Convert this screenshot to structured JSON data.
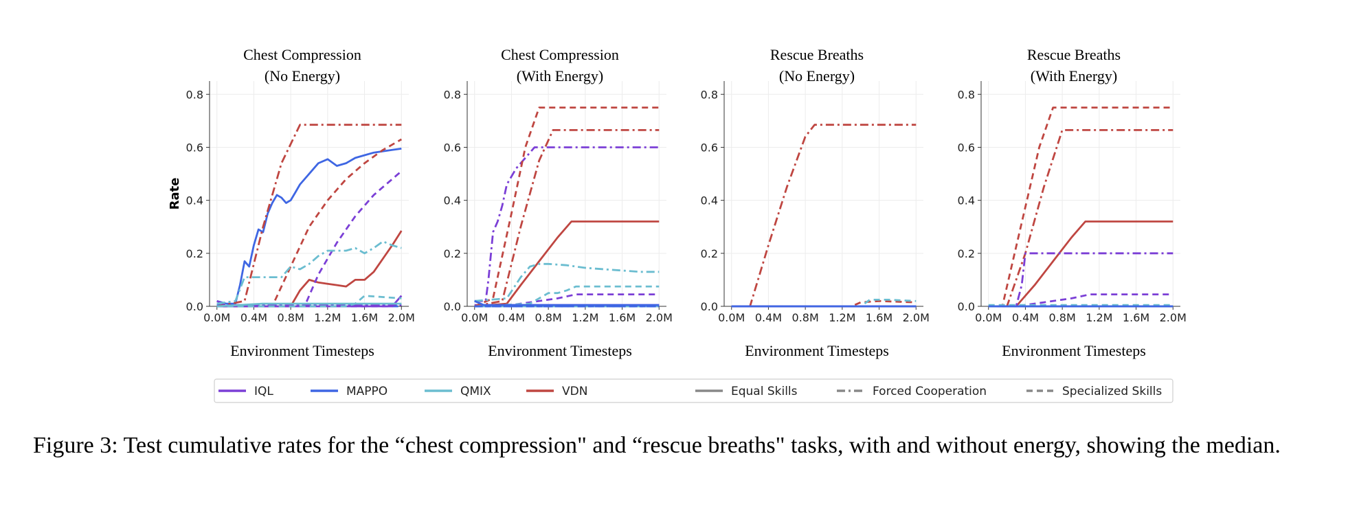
{
  "caption": "Figure 3: Test cumulative rates for the “chest compression\" and “rescue breaths\" tasks, with and without energy, showing the median.",
  "legend": {
    "algorithms": [
      {
        "name": "IQL",
        "color": "#7b3fd6"
      },
      {
        "name": "MAPPO",
        "color": "#3e66e3"
      },
      {
        "name": "QMIX",
        "color": "#6bbdd0"
      },
      {
        "name": "VDN",
        "color": "#bf4641"
      }
    ],
    "styles": [
      {
        "name": "Equal Skills",
        "dash": "solid"
      },
      {
        "name": "Forced Cooperation",
        "dash": "dashdot"
      },
      {
        "name": "Specialized Skills",
        "dash": "dashed"
      }
    ],
    "style_color": "#888888"
  },
  "chart_data": [
    {
      "type": "line",
      "title": "Chest Compression\n(No Energy)",
      "xlabel": "Environment Timesteps",
      "ylabel": "Rate",
      "xlim": [
        -0.08,
        2.08
      ],
      "ylim": [
        0,
        0.85
      ],
      "xticks": [
        0,
        0.4,
        0.8,
        1.2,
        1.6,
        2.0
      ],
      "xticklabels": [
        "0.0M",
        "0.4M",
        "0.8M",
        "1.2M",
        "1.6M",
        "2.0M"
      ],
      "yticks": [
        0,
        0.2,
        0.4,
        0.6,
        0.8
      ],
      "yticklabels": [
        "0.0",
        "0.2",
        "0.4",
        "0.6",
        "0.8"
      ],
      "grid": true,
      "series": [
        {
          "algo": "MAPPO",
          "skill": "Equal Skills",
          "x": [
            0,
            0.1,
            0.2,
            0.25,
            0.3,
            0.35,
            0.4,
            0.45,
            0.5,
            0.55,
            0.6,
            0.65,
            0.7,
            0.75,
            0.8,
            0.85,
            0.9,
            1.0,
            1.1,
            1.2,
            1.3,
            1.4,
            1.5,
            1.6,
            1.7,
            1.8,
            1.9,
            2.0
          ],
          "y": [
            0.02,
            0.01,
            0.01,
            0.08,
            0.17,
            0.15,
            0.23,
            0.29,
            0.28,
            0.35,
            0.39,
            0.42,
            0.41,
            0.39,
            0.4,
            0.43,
            0.46,
            0.5,
            0.54,
            0.555,
            0.53,
            0.54,
            0.56,
            0.57,
            0.58,
            0.585,
            0.59,
            0.595
          ]
        },
        {
          "algo": "MAPPO",
          "skill": "Forced Cooperation",
          "x": [
            0,
            2.0
          ],
          "y": [
            0.005,
            0.005
          ]
        },
        {
          "algo": "MAPPO",
          "skill": "Specialized Skills",
          "x": [
            0,
            0.2,
            2.0
          ],
          "y": [
            0.005,
            0.0,
            0.0
          ]
        },
        {
          "algo": "VDN",
          "skill": "Forced Cooperation",
          "x": [
            0,
            0.3,
            0.5,
            0.7,
            0.9,
            1.0,
            1.2,
            1.6,
            2.0
          ],
          "y": [
            0,
            0.02,
            0.3,
            0.54,
            0.685,
            0.685,
            0.685,
            0.685,
            0.685
          ]
        },
        {
          "algo": "VDN",
          "skill": "Specialized Skills",
          "x": [
            0,
            0.6,
            0.8,
            1.0,
            1.2,
            1.4,
            1.6,
            1.8,
            2.0
          ],
          "y": [
            0,
            0,
            0.15,
            0.3,
            0.4,
            0.48,
            0.54,
            0.59,
            0.63
          ]
        },
        {
          "algo": "VDN",
          "skill": "Equal Skills",
          "x": [
            0,
            0.8,
            0.9,
            1.0,
            1.1,
            1.2,
            1.3,
            1.4,
            1.5,
            1.6,
            1.7,
            1.8,
            1.9,
            2.0
          ],
          "y": [
            0,
            0,
            0.06,
            0.1,
            0.09,
            0.085,
            0.08,
            0.075,
            0.1,
            0.1,
            0.13,
            0.18,
            0.23,
            0.285
          ]
        },
        {
          "algo": "IQL",
          "skill": "Specialized Skills",
          "x": [
            0,
            0.95,
            1.1,
            1.3,
            1.5,
            1.7,
            1.9,
            2.0
          ],
          "y": [
            0,
            0,
            0.12,
            0.24,
            0.34,
            0.42,
            0.48,
            0.51
          ]
        },
        {
          "algo": "IQL",
          "skill": "Equal Skills",
          "x": [
            0,
            1.9,
            2.0
          ],
          "y": [
            0,
            0,
            0.04
          ]
        },
        {
          "algo": "IQL",
          "skill": "Forced Cooperation",
          "x": [
            0,
            0.1,
            2.0
          ],
          "y": [
            0.02,
            0.005,
            0.005
          ]
        },
        {
          "algo": "QMIX",
          "skill": "Forced Cooperation",
          "x": [
            0,
            0.2,
            0.3,
            0.5,
            0.7,
            0.8,
            0.9,
            1.0,
            1.1,
            1.2,
            1.4,
            1.5,
            1.6,
            1.7,
            1.8,
            1.9,
            2.0
          ],
          "y": [
            0.01,
            0.02,
            0.11,
            0.11,
            0.11,
            0.15,
            0.14,
            0.16,
            0.19,
            0.21,
            0.21,
            0.22,
            0.2,
            0.22,
            0.245,
            0.23,
            0.22
          ]
        },
        {
          "algo": "QMIX",
          "skill": "Specialized Skills",
          "x": [
            0,
            1.4,
            1.5,
            1.6,
            1.8,
            2.0
          ],
          "y": [
            0,
            0,
            0.01,
            0.04,
            0.035,
            0.03
          ]
        },
        {
          "algo": "QMIX",
          "skill": "Equal Skills",
          "x": [
            0,
            0.5,
            0.7,
            2.0
          ],
          "y": [
            0,
            0.01,
            0.01,
            0.01
          ]
        }
      ]
    },
    {
      "type": "line",
      "title": "Chest Compression\n(With Energy)",
      "xlabel": "Environment Timesteps",
      "ylabel": "",
      "xlim": [
        -0.08,
        2.08
      ],
      "ylim": [
        0,
        0.85
      ],
      "xticks": [
        0,
        0.4,
        0.8,
        1.2,
        1.6,
        2.0
      ],
      "xticklabels": [
        "0.0M",
        "0.4M",
        "0.8M",
        "1.2M",
        "1.6M",
        "2.0M"
      ],
      "yticks": [
        0,
        0.2,
        0.4,
        0.6,
        0.8
      ],
      "yticklabels": [
        "0.0",
        "0.2",
        "0.4",
        "0.6",
        "0.8"
      ],
      "grid": true,
      "series": [
        {
          "algo": "IQL",
          "skill": "Forced Cooperation",
          "x": [
            0,
            0.12,
            0.15,
            0.2,
            0.25,
            0.3,
            0.35,
            0.45,
            0.55,
            0.65,
            0.8,
            1.0,
            1.5,
            2.0
          ],
          "y": [
            0.02,
            0.02,
            0.1,
            0.28,
            0.32,
            0.38,
            0.46,
            0.52,
            0.56,
            0.6,
            0.6,
            0.6,
            0.6,
            0.6
          ]
        },
        {
          "algo": "IQL",
          "skill": "Specialized Skills",
          "x": [
            0,
            0.3,
            0.6,
            0.9,
            1.1,
            1.4,
            2.0
          ],
          "y": [
            0,
            0,
            0.015,
            0.03,
            0.045,
            0.045,
            0.045
          ]
        },
        {
          "algo": "IQL",
          "skill": "Equal Skills",
          "x": [
            0,
            2.0
          ],
          "y": [
            0.005,
            0.005
          ]
        },
        {
          "algo": "VDN",
          "skill": "Specialized Skills",
          "x": [
            0,
            0.2,
            0.4,
            0.55,
            0.7,
            0.75,
            1.0,
            1.5,
            2.0
          ],
          "y": [
            0,
            0.03,
            0.35,
            0.6,
            0.75,
            0.75,
            0.75,
            0.75,
            0.75
          ]
        },
        {
          "algo": "VDN",
          "skill": "Forced Cooperation",
          "x": [
            0,
            0.3,
            0.5,
            0.7,
            0.85,
            0.9,
            1.2,
            1.6,
            2.0
          ],
          "y": [
            0,
            0.02,
            0.3,
            0.55,
            0.665,
            0.665,
            0.665,
            0.665,
            0.665
          ]
        },
        {
          "algo": "VDN",
          "skill": "Equal Skills",
          "x": [
            0,
            0.35,
            0.5,
            0.7,
            0.9,
            1.05,
            1.2,
            1.6,
            2.0
          ],
          "y": [
            0,
            0.01,
            0.08,
            0.17,
            0.26,
            0.32,
            0.32,
            0.32,
            0.32
          ]
        },
        {
          "algo": "QMIX",
          "skill": "Forced Cooperation",
          "x": [
            0,
            0.35,
            0.5,
            0.6,
            0.7,
            0.8,
            1.0,
            1.2,
            1.4,
            1.6,
            1.8,
            2.0
          ],
          "y": [
            0.02,
            0.03,
            0.11,
            0.15,
            0.16,
            0.16,
            0.155,
            0.145,
            0.14,
            0.135,
            0.13,
            0.13
          ]
        },
        {
          "algo": "QMIX",
          "skill": "Specialized Skills",
          "x": [
            0,
            0.6,
            0.8,
            0.9,
            1.0,
            1.1,
            1.3,
            1.6,
            2.0
          ],
          "y": [
            0,
            0.01,
            0.05,
            0.05,
            0.06,
            0.075,
            0.075,
            0.075,
            0.075
          ]
        },
        {
          "algo": "QMIX",
          "skill": "Equal Skills",
          "x": [
            0,
            2.0
          ],
          "y": [
            0.0,
            0.0
          ]
        },
        {
          "algo": "MAPPO",
          "skill": "Equal Skills",
          "x": [
            0,
            0.1,
            2.0
          ],
          "y": [
            0.02,
            0.005,
            0.005
          ]
        },
        {
          "algo": "MAPPO",
          "skill": "Forced Cooperation",
          "x": [
            0,
            2.0
          ],
          "y": [
            0.0,
            0.0
          ]
        },
        {
          "algo": "MAPPO",
          "skill": "Specialized Skills",
          "x": [
            0,
            2.0
          ],
          "y": [
            0.0,
            0.0
          ]
        }
      ]
    },
    {
      "type": "line",
      "title": "Rescue Breaths\n(No Energy)",
      "xlabel": "Environment Timesteps",
      "ylabel": "",
      "xlim": [
        -0.08,
        2.08
      ],
      "ylim": [
        0,
        0.85
      ],
      "xticks": [
        0,
        0.4,
        0.8,
        1.2,
        1.6,
        2.0
      ],
      "xticklabels": [
        "0.0M",
        "0.4M",
        "0.8M",
        "1.2M",
        "1.6M",
        "2.0M"
      ],
      "yticks": [
        0,
        0.2,
        0.4,
        0.6,
        0.8
      ],
      "yticklabels": [
        "0.0",
        "0.2",
        "0.4",
        "0.6",
        "0.8"
      ],
      "grid": true,
      "series": [
        {
          "algo": "VDN",
          "skill": "Forced Cooperation",
          "x": [
            0,
            0.2,
            0.4,
            0.6,
            0.8,
            0.9,
            0.95,
            1.2,
            1.6,
            2.0
          ],
          "y": [
            0,
            0.0,
            0.23,
            0.45,
            0.64,
            0.685,
            0.685,
            0.685,
            0.685,
            0.685
          ]
        },
        {
          "algo": "VDN",
          "skill": "Specialized Skills",
          "x": [
            0,
            1.3,
            1.4,
            1.6,
            2.0
          ],
          "y": [
            0,
            0,
            0.015,
            0.02,
            0.015
          ]
        },
        {
          "algo": "VDN",
          "skill": "Equal Skills",
          "x": [
            0,
            2.0
          ],
          "y": [
            0.0,
            0.0
          ]
        },
        {
          "algo": "QMIX",
          "skill": "Specialized Skills",
          "x": [
            0,
            1.4,
            1.5,
            1.7,
            2.0
          ],
          "y": [
            0,
            0,
            0.025,
            0.025,
            0.02
          ]
        },
        {
          "algo": "QMIX",
          "skill": "Forced Cooperation",
          "x": [
            0,
            2.0
          ],
          "y": [
            0.0,
            0.0
          ]
        },
        {
          "algo": "QMIX",
          "skill": "Equal Skills",
          "x": [
            0,
            2.0
          ],
          "y": [
            0.0,
            0.0
          ]
        },
        {
          "algo": "IQL",
          "skill": "Equal Skills",
          "x": [
            0,
            2.0
          ],
          "y": [
            0.0,
            0.0
          ]
        },
        {
          "algo": "MAPPO",
          "skill": "Equal Skills",
          "x": [
            0,
            2.0
          ],
          "y": [
            0.0,
            0.0
          ]
        }
      ]
    },
    {
      "type": "line",
      "title": "Rescue Breaths\n(With Energy)",
      "xlabel": "Environment Timesteps",
      "ylabel": "",
      "xlim": [
        -0.08,
        2.08
      ],
      "ylim": [
        0,
        0.85
      ],
      "xticks": [
        0,
        0.4,
        0.8,
        1.2,
        1.6,
        2.0
      ],
      "xticklabels": [
        "0.0M",
        "0.4M",
        "0.8M",
        "1.2M",
        "1.6M",
        "2.0M"
      ],
      "yticks": [
        0,
        0.2,
        0.4,
        0.6,
        0.8
      ],
      "yticklabels": [
        "0.0",
        "0.2",
        "0.4",
        "0.6",
        "0.8"
      ],
      "grid": true,
      "series": [
        {
          "algo": "VDN",
          "skill": "Specialized Skills",
          "x": [
            0,
            0.15,
            0.35,
            0.55,
            0.7,
            0.75,
            1.0,
            1.5,
            2.0
          ],
          "y": [
            0,
            0.0,
            0.3,
            0.6,
            0.75,
            0.75,
            0.75,
            0.75,
            0.75
          ]
        },
        {
          "algo": "VDN",
          "skill": "Forced Cooperation",
          "x": [
            0,
            0.2,
            0.4,
            0.6,
            0.8,
            0.85,
            1.2,
            1.6,
            2.0
          ],
          "y": [
            0,
            0.0,
            0.2,
            0.45,
            0.665,
            0.665,
            0.665,
            0.665,
            0.665
          ]
        },
        {
          "algo": "VDN",
          "skill": "Equal Skills",
          "x": [
            0,
            0.3,
            0.5,
            0.7,
            0.9,
            1.05,
            1.2,
            1.6,
            2.0
          ],
          "y": [
            0,
            0.0,
            0.08,
            0.17,
            0.26,
            0.32,
            0.32,
            0.32,
            0.32
          ]
        },
        {
          "algo": "IQL",
          "skill": "Forced Cooperation",
          "x": [
            0,
            0.3,
            0.36,
            0.4,
            0.45,
            0.6,
            1.0,
            1.5,
            2.0
          ],
          "y": [
            0,
            0.0,
            0.08,
            0.2,
            0.2,
            0.2,
            0.2,
            0.2,
            0.2
          ]
        },
        {
          "algo": "IQL",
          "skill": "Specialized Skills",
          "x": [
            0,
            0.3,
            0.6,
            0.9,
            1.1,
            1.3,
            2.0
          ],
          "y": [
            0,
            0.0,
            0.015,
            0.03,
            0.045,
            0.045,
            0.045
          ]
        },
        {
          "algo": "IQL",
          "skill": "Equal Skills",
          "x": [
            0,
            2.0
          ],
          "y": [
            0.0,
            0.0
          ]
        },
        {
          "algo": "QMIX",
          "skill": "Specialized Skills",
          "x": [
            0,
            2.0
          ],
          "y": [
            0.005,
            0.005
          ]
        },
        {
          "algo": "QMIX",
          "skill": "Forced Cooperation",
          "x": [
            0,
            2.0
          ],
          "y": [
            0.0,
            0.0
          ]
        },
        {
          "algo": "MAPPO",
          "skill": "Equal Skills",
          "x": [
            0,
            2.0
          ],
          "y": [
            0.0,
            0.0
          ]
        }
      ]
    }
  ]
}
